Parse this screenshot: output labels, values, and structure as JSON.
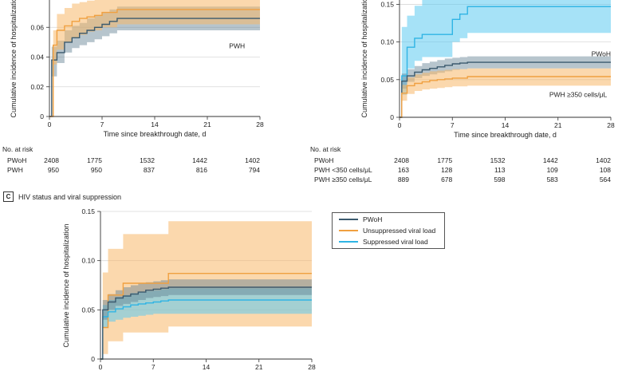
{
  "panel_c": {
    "letter": "C",
    "title": "HIV status and viral suppression"
  },
  "colors": {
    "pwoh": "#3b5a6e",
    "orange": "#f0a040",
    "blue": "#2fb4e4"
  },
  "risk_a": {
    "title": "No. at risk",
    "times": [
      0,
      7,
      14,
      21,
      28
    ],
    "rows": [
      {
        "label": "PWoH",
        "values": [
          "2408",
          "1775",
          "1532",
          "1442",
          "1402"
        ]
      },
      {
        "label": "PWH",
        "values": [
          "950",
          "950",
          "837",
          "816",
          "794"
        ]
      }
    ]
  },
  "risk_b": {
    "title": "No. at risk",
    "times": [
      0,
      7,
      14,
      21,
      28
    ],
    "rows": [
      {
        "label": "PWoH",
        "values": [
          "2408",
          "1775",
          "1532",
          "1442",
          "1402"
        ]
      },
      {
        "label": "PWH <350 cells/μL",
        "values": [
          "163",
          "128",
          "113",
          "109",
          "108"
        ]
      },
      {
        "label": "PWH ≥350 cells/μL",
        "values": [
          "889",
          "678",
          "598",
          "583",
          "564"
        ]
      }
    ]
  },
  "chart_data": [
    {
      "panel": "A",
      "type": "line",
      "xlabel": "Time since breakthrough date, d",
      "ylabel": "Cumulative incidence of hospitalization",
      "xlim": [
        0,
        28
      ],
      "ylim": [
        0,
        0.08
      ],
      "xticks": [
        0,
        7,
        14,
        21,
        28
      ],
      "yticks": [
        0,
        0.02,
        0.04,
        0.06
      ],
      "ytick_labels": [
        "0",
        "0.02",
        "0.04",
        "0.06"
      ],
      "grid": true,
      "annotations": [
        {
          "text": "PWH",
          "x": 26,
          "y": 0.046
        }
      ],
      "series": [
        {
          "key": "pwoh",
          "x": [
            0,
            0.3,
            1,
            2,
            3,
            4,
            5,
            6,
            7,
            8,
            9,
            28
          ],
          "y": [
            0,
            0.038,
            0.043,
            0.05,
            0.053,
            0.056,
            0.058,
            0.06,
            0.062,
            0.064,
            0.066,
            0.066
          ],
          "lower": [
            0,
            0.027,
            0.036,
            0.043,
            0.046,
            0.048,
            0.05,
            0.052,
            0.054,
            0.056,
            0.058,
            0.058
          ],
          "upper": [
            0,
            0.047,
            0.051,
            0.058,
            0.061,
            0.063,
            0.066,
            0.068,
            0.07,
            0.072,
            0.074,
            0.074
          ]
        },
        {
          "key": "orange",
          "x": [
            0,
            0.5,
            1,
            2,
            3,
            4,
            5,
            6,
            7,
            9,
            28
          ],
          "y": [
            0,
            0.048,
            0.058,
            0.061,
            0.064,
            0.066,
            0.067,
            0.068,
            0.07,
            0.072,
            0.072
          ],
          "lower": [
            0,
            0.035,
            0.045,
            0.05,
            0.053,
            0.055,
            0.057,
            0.058,
            0.06,
            0.062,
            0.062
          ],
          "upper": [
            0,
            0.058,
            0.069,
            0.073,
            0.076,
            0.077,
            0.078,
            0.079,
            0.08,
            0.08,
            0.08
          ]
        }
      ]
    },
    {
      "panel": "B",
      "type": "line",
      "xlabel": "Time since breakthrough date, d",
      "ylabel": "Cumulative incidence of hospitalization",
      "xlim": [
        0,
        28
      ],
      "ylim": [
        0,
        0.16
      ],
      "xticks": [
        0,
        7,
        14,
        21,
        28
      ],
      "yticks": [
        0,
        0.05,
        0.1,
        0.15
      ],
      "ytick_labels": [
        "0",
        "0.05",
        "0.10",
        "0.15"
      ],
      "grid": true,
      "annotations": [
        {
          "text": "PWoH",
          "x": 28,
          "y": 0.081
        },
        {
          "text": "PWH ≥350 cells/μL",
          "x": 27.5,
          "y": 0.027
        }
      ],
      "series": [
        {
          "key": "blue",
          "x": [
            0,
            0.3,
            1,
            2,
            3,
            5,
            7,
            8,
            9,
            28
          ],
          "y": [
            0,
            0.055,
            0.093,
            0.105,
            0.11,
            0.11,
            0.13,
            0.137,
            0.147,
            0.147
          ],
          "lower": [
            0,
            0.03,
            0.065,
            0.075,
            0.08,
            0.08,
            0.1,
            0.105,
            0.112,
            0.112
          ],
          "upper": [
            0,
            0.12,
            0.135,
            0.148,
            0.16,
            0.16,
            0.16,
            0.16,
            0.16,
            0.16
          ]
        },
        {
          "key": "pwoh",
          "x": [
            0,
            0.3,
            1,
            2,
            3,
            4,
            5,
            6,
            7,
            8,
            9,
            28
          ],
          "y": [
            0,
            0.048,
            0.055,
            0.06,
            0.063,
            0.065,
            0.067,
            0.069,
            0.071,
            0.072,
            0.073,
            0.073
          ],
          "lower": [
            0,
            0.038,
            0.047,
            0.052,
            0.055,
            0.057,
            0.059,
            0.061,
            0.063,
            0.064,
            0.065,
            0.065
          ],
          "upper": [
            0,
            0.058,
            0.064,
            0.068,
            0.072,
            0.074,
            0.076,
            0.078,
            0.079,
            0.08,
            0.081,
            0.081
          ]
        },
        {
          "key": "orange",
          "x": [
            0,
            0.3,
            1,
            2,
            3,
            4,
            5,
            6,
            7,
            9,
            28
          ],
          "y": [
            0,
            0.032,
            0.042,
            0.045,
            0.047,
            0.049,
            0.05,
            0.051,
            0.052,
            0.054,
            0.054
          ],
          "lower": [
            0,
            0.022,
            0.031,
            0.035,
            0.037,
            0.038,
            0.039,
            0.04,
            0.041,
            0.042,
            0.042
          ],
          "upper": [
            0,
            0.043,
            0.053,
            0.057,
            0.059,
            0.061,
            0.062,
            0.063,
            0.064,
            0.065,
            0.065
          ]
        }
      ]
    },
    {
      "panel": "C",
      "type": "line",
      "xlabel": "",
      "ylabel": "Cumulative incidence of hospitalization",
      "xlim": [
        0,
        28
      ],
      "ylim": [
        0,
        0.15
      ],
      "xticks": [
        0,
        7,
        14,
        21,
        28
      ],
      "yticks": [
        0,
        0.05,
        0.1,
        0.15
      ],
      "ytick_labels": [
        "0",
        "0.05",
        "0.10",
        "0.15"
      ],
      "grid": true,
      "legend": "right",
      "series": [
        {
          "key": "orange",
          "name": "Unsuppressed viral load",
          "x": [
            0,
            0.3,
            1,
            3,
            9,
            28
          ],
          "y": [
            0,
            0.032,
            0.065,
            0.077,
            0.087,
            0.087
          ],
          "lower": [
            0,
            0.005,
            0.018,
            0.027,
            0.033,
            0.033
          ],
          "upper": [
            0,
            0.088,
            0.112,
            0.127,
            0.14,
            0.14
          ]
        },
        {
          "key": "blue",
          "name": "Suppressed viral load",
          "x": [
            0,
            0.3,
            1,
            2,
            3,
            4,
            5,
            6,
            7,
            8,
            9,
            28
          ],
          "y": [
            0,
            0.043,
            0.048,
            0.051,
            0.053,
            0.055,
            0.056,
            0.057,
            0.058,
            0.059,
            0.06,
            0.06
          ],
          "lower": [
            0,
            0.032,
            0.038,
            0.04,
            0.042,
            0.043,
            0.044,
            0.045,
            0.046,
            0.046,
            0.046,
            0.046
          ],
          "upper": [
            0,
            0.055,
            0.06,
            0.063,
            0.065,
            0.067,
            0.068,
            0.069,
            0.07,
            0.071,
            0.072,
            0.072
          ]
        },
        {
          "key": "pwoh",
          "name": "PWoH",
          "x": [
            0,
            0.3,
            1,
            2,
            3,
            4,
            5,
            6,
            7,
            8,
            9,
            28
          ],
          "y": [
            0,
            0.05,
            0.058,
            0.062,
            0.064,
            0.066,
            0.068,
            0.07,
            0.071,
            0.072,
            0.073,
            0.073
          ],
          "lower": [
            0,
            0.04,
            0.05,
            0.054,
            0.056,
            0.058,
            0.06,
            0.062,
            0.063,
            0.064,
            0.065,
            0.065
          ],
          "upper": [
            0,
            0.06,
            0.066,
            0.07,
            0.073,
            0.075,
            0.077,
            0.078,
            0.079,
            0.08,
            0.081,
            0.081
          ]
        }
      ]
    }
  ]
}
